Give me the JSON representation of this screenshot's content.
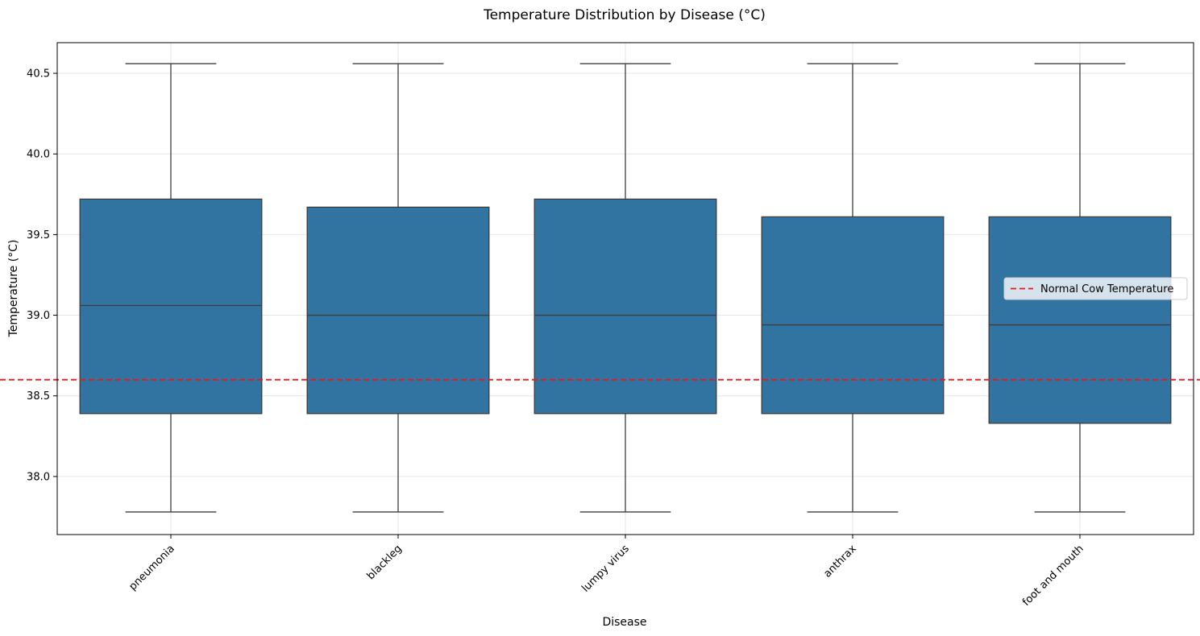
{
  "chart_data": {
    "type": "box",
    "title": "Temperature Distribution by Disease (°C)",
    "xlabel": "Disease",
    "ylabel": "Temperature (°C)",
    "ylim": [
      37.64,
      40.69
    ],
    "yticks": [
      "38.0",
      "38.5",
      "39.0",
      "39.5",
      "40.0",
      "40.5"
    ],
    "grid": true,
    "box_color": "#3274a1",
    "categories": [
      "pneumonia",
      "blackleg",
      "lumpy virus",
      "anthrax",
      "foot and mouth"
    ],
    "boxes": [
      {
        "min": 37.78,
        "q1": 38.39,
        "median": 39.06,
        "q3": 39.72,
        "max": 40.56
      },
      {
        "min": 37.78,
        "q1": 38.39,
        "median": 39.0,
        "q3": 39.67,
        "max": 40.56
      },
      {
        "min": 37.78,
        "q1": 38.39,
        "median": 39.0,
        "q3": 39.72,
        "max": 40.56
      },
      {
        "min": 37.78,
        "q1": 38.39,
        "median": 38.94,
        "q3": 39.61,
        "max": 40.56
      },
      {
        "min": 37.78,
        "q1": 38.33,
        "median": 38.94,
        "q3": 39.61,
        "max": 40.56
      }
    ],
    "reference_line": {
      "label": "Normal Cow Temperature",
      "value": 38.6,
      "color": "#e41a1c",
      "style": "dashed"
    },
    "legend": {
      "placement": "right",
      "entries": [
        "Normal Cow Temperature"
      ]
    }
  }
}
